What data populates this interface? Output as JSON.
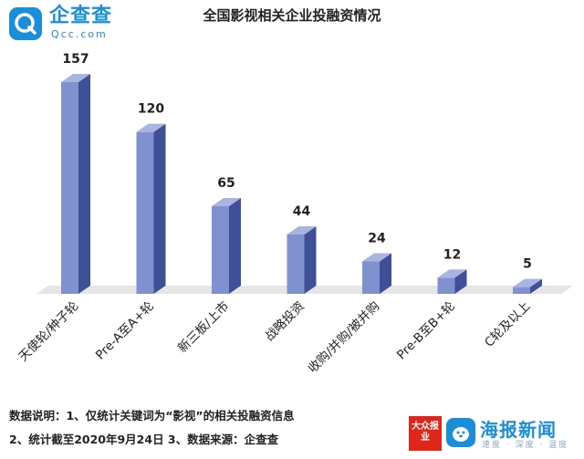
{
  "logo": {
    "name": "企查查",
    "domain": "Qcc.com",
    "icon": "search-q-icon"
  },
  "chart_data": {
    "type": "bar",
    "title": "全国影视相关企业投融资情况",
    "categories": [
      "天使轮/种子轮",
      "Pre-A至A+轮",
      "新三板/上市",
      "战略投资",
      "收购/并购/被并购",
      "Pre-B至B+轮",
      "C轮及以上"
    ],
    "values": [
      157,
      120,
      65,
      44,
      24,
      12,
      5
    ],
    "ylim": [
      0,
      157
    ],
    "grid": false,
    "style": "3d-column",
    "colors": {
      "front": "#7f91cf",
      "side": "#3f4f98",
      "top": "#a8b5e0",
      "floor": "#e5e5e5"
    }
  },
  "notes": {
    "line1": "数据说明：1、仅统计关键词为“影视”的相关投融资信息",
    "line2": "2、统计截至2020年9月24日      3、数据来源：企查查"
  },
  "brands": {
    "paper": "大众报业",
    "app_name": "海报新闻",
    "app_sub": "速度 · 深度 · 温度",
    "app_icon": "seal-icon"
  }
}
